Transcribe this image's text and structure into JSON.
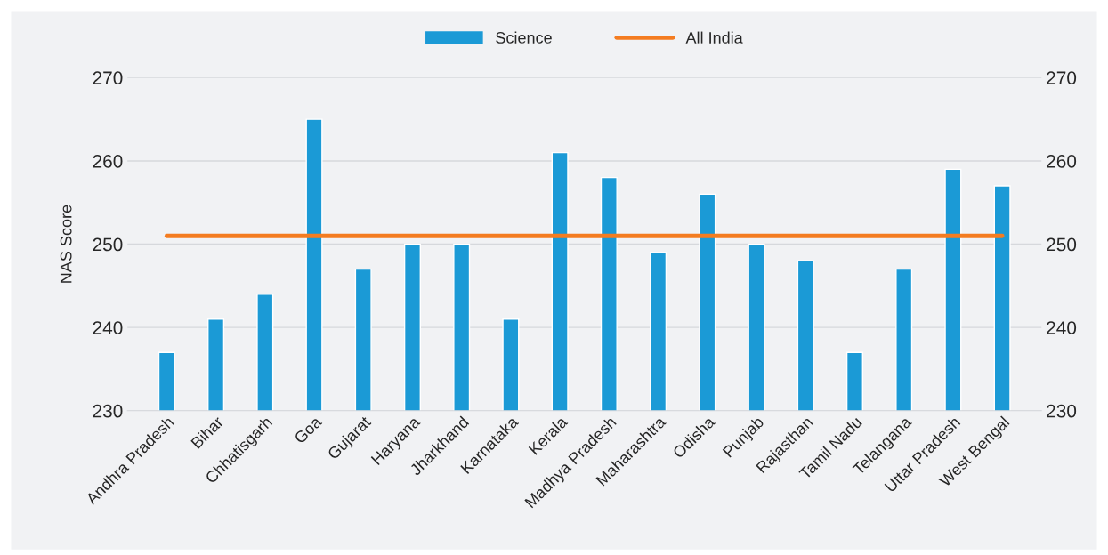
{
  "chart_data": {
    "type": "bar",
    "categories": [
      "Andhra Pradesh",
      "Bihar",
      "Chhatisgarh",
      "Goa",
      "Gujarat",
      "Haryana",
      "Jharkhand",
      "Karnataka",
      "Kerala",
      "Madhya Pradesh",
      "Maharashtra",
      "Odisha",
      "Punjab",
      "Rajasthan",
      "Tamil Nadu",
      "Telangana",
      "Uttar Pradesh",
      "West Bengal"
    ],
    "series": [
      {
        "name": "Science",
        "color": "#1b9ad6",
        "values": [
          237,
          241,
          244,
          265,
          247,
          250,
          250,
          241,
          261,
          258,
          249,
          256,
          250,
          248,
          237,
          247,
          259,
          257
        ]
      },
      {
        "name": "All India",
        "type": "line",
        "color": "#f47c20",
        "values": [
          251,
          251,
          251,
          251,
          251,
          251,
          251,
          251,
          251,
          251,
          251,
          251,
          251,
          251,
          251,
          251,
          251,
          251
        ]
      }
    ],
    "ylabel": "NAS Score",
    "ylim": [
      230,
      270
    ],
    "yticks": [
      230,
      240,
      250,
      260,
      270
    ],
    "y2lim": [
      230,
      270
    ],
    "y2ticks": [
      230,
      240,
      250,
      260,
      270
    ],
    "grid": "y",
    "legend": "top",
    "marker": "none",
    "line_style": "solid"
  }
}
